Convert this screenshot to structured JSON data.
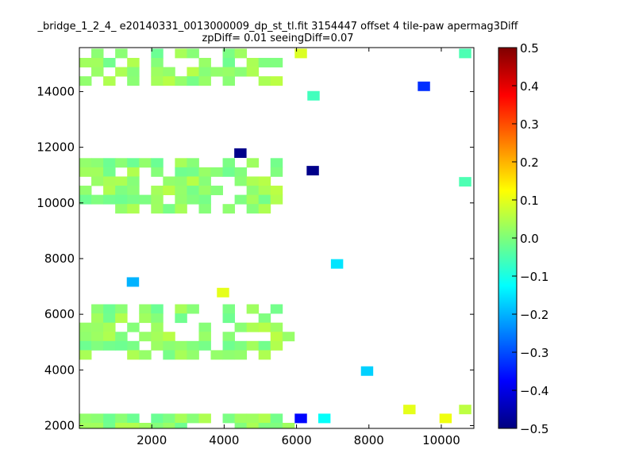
{
  "chart_data": {
    "type": "heatmap",
    "title_lines": [
      "_bridge_1_2_4_ e20140331_0013000009_dp_st_tl.fit 3154447 offset 4 tile-paw apermag3Diff",
      "zpDiff= 0.01 seeingDiff=0.07"
    ],
    "x_ticks": [
      2000,
      4000,
      6000,
      8000,
      10000
    ],
    "y_ticks": [
      2000,
      4000,
      6000,
      8000,
      10000,
      12000,
      14000
    ],
    "xlim": [
      0,
      10900
    ],
    "ylim": [
      1900,
      15580
    ],
    "cell_size": 330,
    "colorbar": {
      "ticks": [
        "0.5",
        "0.4",
        "0.3",
        "0.2",
        "0.1",
        "0.0",
        "−0.1",
        "−0.2",
        "−0.3",
        "−0.4",
        "−0.5"
      ],
      "vmin": -0.5,
      "vmax": 0.5,
      "colormap": "jet"
    },
    "blocks": [
      {
        "x": 0,
        "y": 15210,
        "nx": 18,
        "ny": 4,
        "v": 0.02
      },
      {
        "x": 0,
        "y": 11280,
        "nx": 18,
        "ny": 6,
        "v": 0.02
      },
      {
        "x": 0,
        "y": 6030,
        "nx": 18,
        "ny": 6,
        "v": 0.02
      },
      {
        "x": 0,
        "y": 2100,
        "nx": 18,
        "ny": 6,
        "v": 0.02
      }
    ],
    "cells": [
      {
        "x": 4280,
        "y": 11630,
        "v": -0.49
      },
      {
        "x": 6280,
        "y": 11000,
        "v": -0.49
      },
      {
        "x": 9350,
        "y": 14030,
        "v": -0.33
      },
      {
        "x": 5950,
        "y": 2100,
        "v": -0.37
      },
      {
        "x": 1310,
        "y": 7000,
        "v": -0.2
      },
      {
        "x": 6950,
        "y": 7650,
        "v": -0.15
      },
      {
        "x": 7780,
        "y": 3800,
        "v": -0.17
      },
      {
        "x": 6600,
        "y": 2100,
        "v": -0.12
      },
      {
        "x": 6300,
        "y": 13690,
        "v": -0.06
      },
      {
        "x": 10490,
        "y": 15210,
        "v": -0.05
      },
      {
        "x": 10490,
        "y": 10600,
        "v": -0.05
      },
      {
        "x": 3800,
        "y": 6620,
        "v": 0.1
      },
      {
        "x": 5950,
        "y": 15210,
        "v": 0.09
      },
      {
        "x": 8950,
        "y": 2420,
        "v": 0.1
      },
      {
        "x": 9950,
        "y": 2100,
        "v": 0.11
      },
      {
        "x": 10490,
        "y": 2420,
        "v": 0.06
      }
    ]
  }
}
